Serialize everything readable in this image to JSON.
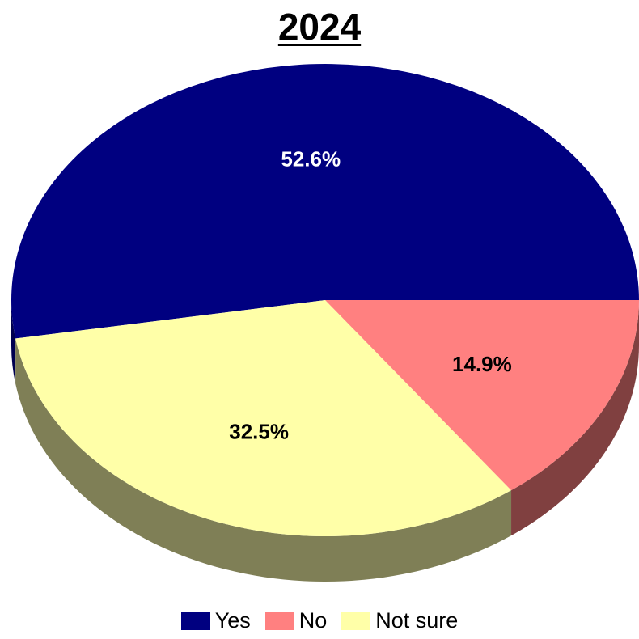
{
  "chart_data": {
    "type": "pie",
    "title": "2024",
    "slices": [
      {
        "name": "Yes",
        "value": 52.6,
        "label": "52.6%",
        "color": "#000080",
        "side_color": "#000050",
        "label_color": "#ffffff"
      },
      {
        "name": "Not sure",
        "value": 32.5,
        "label": "32.5%",
        "color": "#ffffa8",
        "side_color": "#7f7f56",
        "label_color": "#000000"
      },
      {
        "name": "No",
        "value": 14.9,
        "label": "14.9%",
        "color": "#ff8080",
        "side_color": "#804040",
        "label_color": "#000000"
      }
    ],
    "legend": {
      "position": "bottom",
      "items": [
        {
          "name": "Yes",
          "color": "#000080"
        },
        {
          "name": "No",
          "color": "#ff8080"
        },
        {
          "name": "Not sure",
          "color": "#ffffa8"
        }
      ]
    }
  }
}
